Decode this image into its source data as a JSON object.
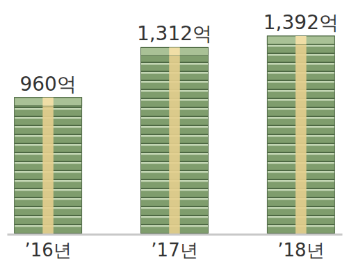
{
  "chart_data": {
    "type": "bar",
    "categories": [
      "’16년",
      "’17년",
      "’18년"
    ],
    "values": [
      960,
      1312,
      1392
    ],
    "value_labels": [
      "960억",
      "1,312억",
      "1,392억"
    ],
    "data_labels": true,
    "tick_labels": "x",
    "color": "#7f9d6d"
  }
}
